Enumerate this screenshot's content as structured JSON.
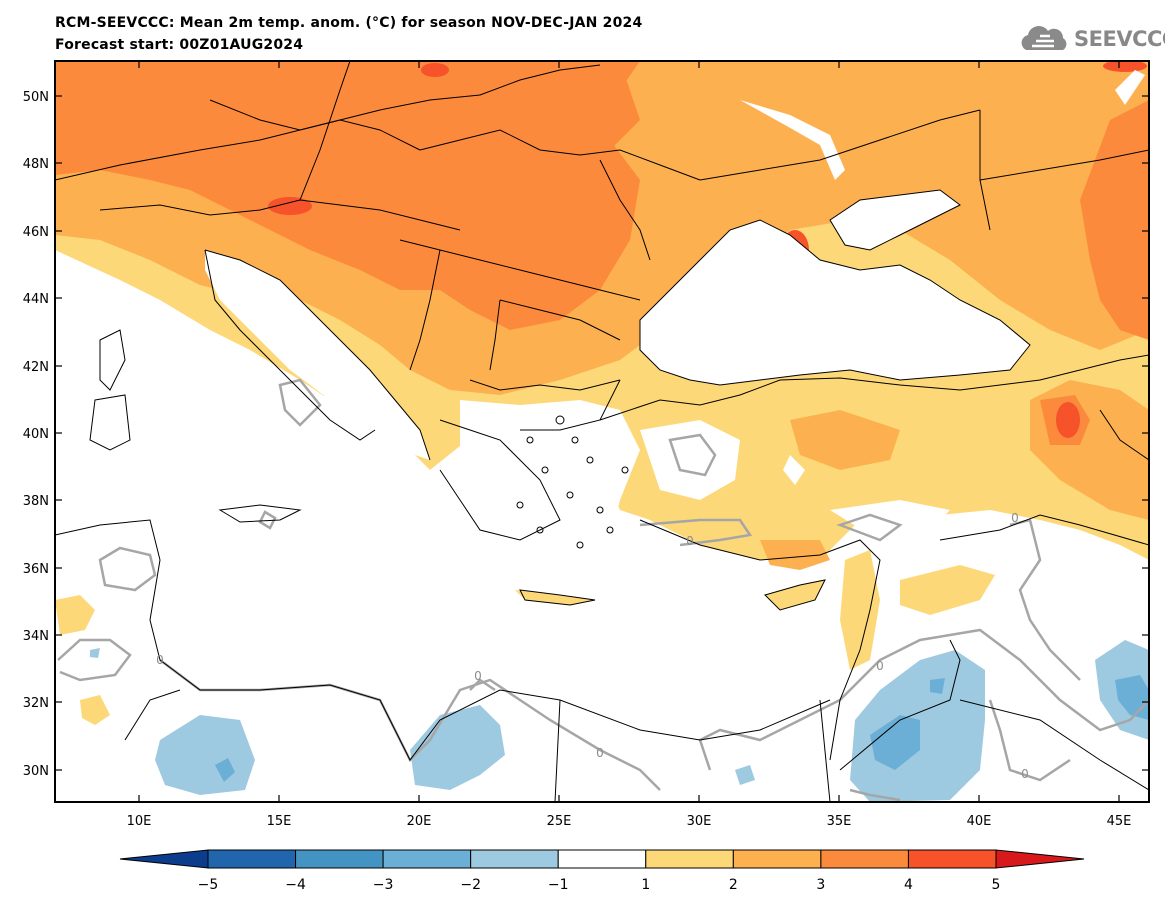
{
  "header": {
    "title": "RCM-SEEVCCC: Mean 2m temp. anom. (°C) for season NOV-DEC-JAN 2024",
    "subtitle": "Forecast start: 00Z01AUG2024",
    "logo_text": "SEEVCCC"
  },
  "axes": {
    "lon_labels": [
      "10E",
      "15E",
      "20E",
      "25E",
      "30E",
      "35E",
      "40E",
      "45E"
    ],
    "lat_labels": [
      "50N",
      "48N",
      "46N",
      "44N",
      "42N",
      "40N",
      "38N",
      "36N",
      "34N",
      "32N",
      "30N"
    ]
  },
  "colorbar": {
    "levels": [
      "−5",
      "−4",
      "−3",
      "−2",
      "−1",
      "1",
      "2",
      "3",
      "4",
      "5"
    ],
    "colors": [
      "#0b3d8c",
      "#2166ac",
      "#4393c3",
      "#6baed6",
      "#9ecae1",
      "#ffffff",
      "#fdd878",
      "#fdb050",
      "#fc8a3c",
      "#f6532a",
      "#d7191c"
    ]
  },
  "contour_labels": [
    "0",
    "0",
    "0",
    "0",
    "0",
    "0",
    "0"
  ]
}
